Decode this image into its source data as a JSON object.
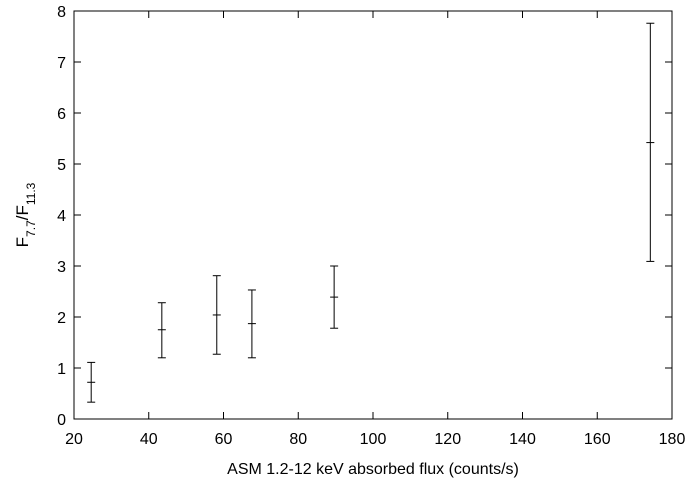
{
  "chart_data": {
    "type": "scatter",
    "title": "",
    "xlabel": "ASM 1.2-12 keV absorbed flux (counts/s)",
    "ylabel": {
      "base": "F",
      "sub1": "7.7",
      "sep": "/F",
      "sub2": "11.3"
    },
    "xlim": [
      20,
      180
    ],
    "ylim": [
      0,
      8
    ],
    "xticks": [
      20,
      40,
      60,
      80,
      100,
      120,
      140,
      160,
      180
    ],
    "yticks": [
      0,
      1,
      2,
      3,
      4,
      5,
      6,
      7,
      8
    ],
    "xtick_labels": [
      "20",
      "40",
      "60",
      "80",
      "100",
      "120",
      "140",
      "160",
      "180"
    ],
    "ytick_labels": [
      "0",
      "1",
      "2",
      "3",
      "4",
      "5",
      "6",
      "7",
      "8"
    ],
    "grid": false,
    "legend": false,
    "points": [
      {
        "x": 24.6,
        "y": 0.72,
        "ylo": 0.33,
        "yhi": 1.11
      },
      {
        "x": 43.5,
        "y": 1.75,
        "ylo": 1.2,
        "yhi": 2.28
      },
      {
        "x": 58.2,
        "y": 2.04,
        "ylo": 1.27,
        "yhi": 2.81
      },
      {
        "x": 67.6,
        "y": 1.87,
        "ylo": 1.2,
        "yhi": 2.53
      },
      {
        "x": 89.6,
        "y": 2.39,
        "ylo": 1.78,
        "yhi": 3.0
      },
      {
        "x": 174.2,
        "y": 5.42,
        "ylo": 3.09,
        "yhi": 7.76
      }
    ],
    "colors": {
      "marks": "#000000",
      "background": "#ffffff"
    }
  }
}
